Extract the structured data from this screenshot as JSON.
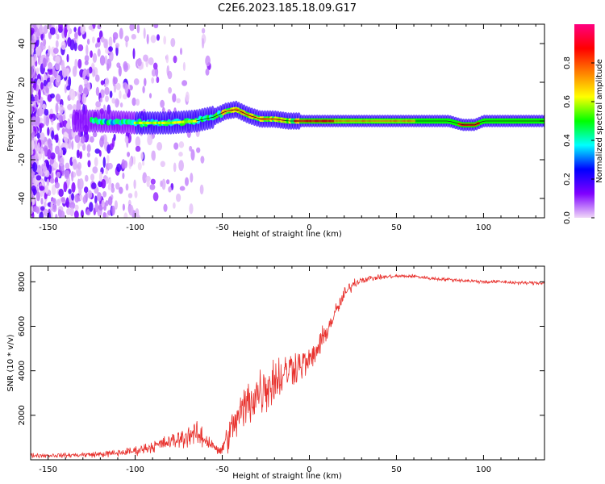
{
  "title": "C2E6.2023.185.18.09.G17",
  "chart_data": [
    {
      "type": "heatmap",
      "xlabel": "Height of straight line (km)",
      "ylabel": "Frequency (Hz)",
      "xlim": [
        -160,
        135
      ],
      "ylim": [
        -50,
        50
      ],
      "xticks": [
        -150,
        -100,
        -50,
        0,
        50,
        100
      ],
      "yticks": [
        -40,
        -20,
        0,
        20,
        40
      ],
      "ridge": {
        "x": [
          -120,
          -100,
          -80,
          -65,
          -55,
          -48,
          -42,
          -35,
          -28,
          -20,
          -12,
          -5,
          20,
          50,
          80,
          88,
          95,
          100,
          135
        ],
        "y": [
          0,
          -1,
          -1,
          0,
          2,
          5,
          6,
          3,
          1,
          1,
          0,
          0,
          0,
          0,
          0,
          -2,
          -2,
          0,
          0
        ]
      },
      "scatter_region": {
        "x_from": -160,
        "x_to": -55,
        "freq_spread": 50
      },
      "colorbar": {
        "label": "Normalized spectral amplitude",
        "range": [
          0.0,
          1.0
        ],
        "ticks": [
          0.0,
          0.2,
          0.4,
          0.6,
          0.8
        ],
        "colors": [
          "#f0d8f8",
          "#7f00ff",
          "#0000ff",
          "#00ffff",
          "#00ff00",
          "#ffff00",
          "#ff8000",
          "#ff0000",
          "#ff0080"
        ]
      },
      "grid": false
    },
    {
      "type": "line",
      "xlabel": "Height of straight line (km)",
      "ylabel": "SNR (10 * v/v)",
      "xlim": [
        -160,
        135
      ],
      "ylim": [
        0,
        8700
      ],
      "xticks": [
        -150,
        -100,
        -50,
        0,
        50,
        100
      ],
      "yticks": [
        2000,
        4000,
        6000,
        8000
      ],
      "series": [
        {
          "color": "#e8322e",
          "x": [
            -160,
            -140,
            -120,
            -110,
            -100,
            -90,
            -80,
            -72,
            -67,
            -60,
            -55,
            -52,
            -48,
            -44,
            -40,
            -35,
            -30,
            -25,
            -20,
            -15,
            -10,
            -5,
            0,
            5,
            10,
            15,
            20,
            25,
            30,
            35,
            40,
            50,
            60,
            70,
            80,
            90,
            100,
            110,
            120,
            135
          ],
          "y": [
            200,
            200,
            250,
            300,
            400,
            600,
            800,
            1000,
            1200,
            900,
            700,
            300,
            800,
            1500,
            2000,
            2600,
            3000,
            3300,
            3600,
            3800,
            4200,
            4300,
            4400,
            5000,
            5800,
            6600,
            7400,
            7900,
            8100,
            8150,
            8200,
            8250,
            8250,
            8150,
            8100,
            8050,
            8000,
            8000,
            7950,
            7950
          ],
          "noise": [
            150,
            150,
            200,
            250,
            300,
            400,
            500,
            700,
            900,
            600,
            500,
            300,
            900,
            1200,
            1500,
            1700,
            1800,
            1800,
            1700,
            1500,
            1300,
            1100,
            900,
            800,
            700,
            600,
            500,
            350,
            250,
            200,
            150,
            120,
            120,
            120,
            120,
            120,
            120,
            120,
            120,
            120
          ]
        }
      ],
      "grid": false
    }
  ]
}
